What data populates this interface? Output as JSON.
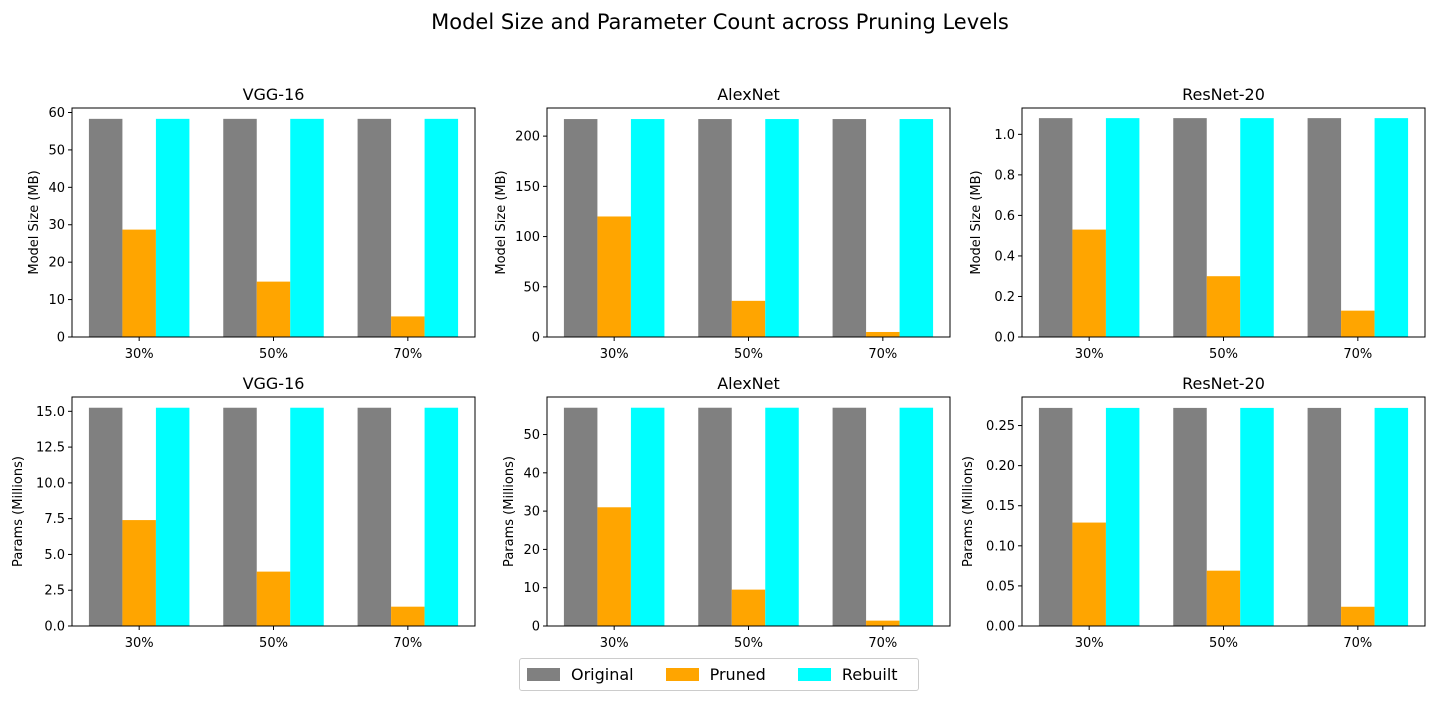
{
  "title": "Model Size and Parameter Count across Pruning Levels",
  "colors": {
    "Original": "#808080",
    "Pruned": "#FFA500",
    "Rebuilt": "#00FFFF"
  },
  "legend": [
    {
      "label": "Original",
      "color": "#808080"
    },
    {
      "label": "Pruned",
      "color": "#FFA500"
    },
    {
      "label": "Rebuilt",
      "color": "#00FFFF"
    }
  ],
  "chart_data": [
    {
      "type": "bar",
      "title": "VGG-16",
      "xlabel": "",
      "ylabel": "Model Size (MB)",
      "categories": [
        "30%",
        "50%",
        "70%"
      ],
      "ylim": [
        0,
        61.2
      ],
      "yticks": [
        "0",
        "10",
        "20",
        "30",
        "40",
        "50",
        "60"
      ],
      "series": [
        {
          "name": "Original",
          "values": [
            58.3,
            58.3,
            58.3
          ]
        },
        {
          "name": "Pruned",
          "values": [
            28.7,
            14.8,
            5.5
          ]
        },
        {
          "name": "Rebuilt",
          "values": [
            58.3,
            58.3,
            58.3
          ]
        }
      ]
    },
    {
      "type": "bar",
      "title": "AlexNet",
      "xlabel": "",
      "ylabel": "Model Size (MB)",
      "categories": [
        "30%",
        "50%",
        "70%"
      ],
      "ylim": [
        0,
        228
      ],
      "yticks": [
        "0",
        "50",
        "100",
        "150",
        "200"
      ],
      "series": [
        {
          "name": "Original",
          "values": [
            217,
            217,
            217
          ]
        },
        {
          "name": "Pruned",
          "values": [
            120,
            36,
            5
          ]
        },
        {
          "name": "Rebuilt",
          "values": [
            217,
            217,
            217
          ]
        }
      ]
    },
    {
      "type": "bar",
      "title": "ResNet-20",
      "xlabel": "",
      "ylabel": "Model Size (MB)",
      "categories": [
        "30%",
        "50%",
        "70%"
      ],
      "ylim": [
        0,
        1.13
      ],
      "yticks": [
        "0.0",
        "0.2",
        "0.4",
        "0.6",
        "0.8",
        "1.0"
      ],
      "series": [
        {
          "name": "Original",
          "values": [
            1.08,
            1.08,
            1.08
          ]
        },
        {
          "name": "Pruned",
          "values": [
            0.53,
            0.3,
            0.13
          ]
        },
        {
          "name": "Rebuilt",
          "values": [
            1.08,
            1.08,
            1.08
          ]
        }
      ]
    },
    {
      "type": "bar",
      "title": "VGG-16",
      "xlabel": "",
      "ylabel": "Params (Millions)",
      "categories": [
        "30%",
        "50%",
        "70%"
      ],
      "ylim": [
        0,
        16.0
      ],
      "yticks": [
        "0.0",
        "2.5",
        "5.0",
        "7.5",
        "10.0",
        "12.5",
        "15.0"
      ],
      "series": [
        {
          "name": "Original",
          "values": [
            15.25,
            15.25,
            15.25
          ]
        },
        {
          "name": "Pruned",
          "values": [
            7.4,
            3.8,
            1.35
          ]
        },
        {
          "name": "Rebuilt",
          "values": [
            15.25,
            15.25,
            15.25
          ]
        }
      ]
    },
    {
      "type": "bar",
      "title": "AlexNet",
      "xlabel": "",
      "ylabel": "Params (Millions)",
      "categories": [
        "30%",
        "50%",
        "70%"
      ],
      "ylim": [
        0,
        59.8
      ],
      "yticks": [
        "0",
        "10",
        "20",
        "30",
        "40",
        "50"
      ],
      "series": [
        {
          "name": "Original",
          "values": [
            57,
            57,
            57
          ]
        },
        {
          "name": "Pruned",
          "values": [
            31,
            9.5,
            1.4
          ]
        },
        {
          "name": "Rebuilt",
          "values": [
            57,
            57,
            57
          ]
        }
      ]
    },
    {
      "type": "bar",
      "title": "ResNet-20",
      "xlabel": "",
      "ylabel": "Params (Millions)",
      "categories": [
        "30%",
        "50%",
        "70%"
      ],
      "ylim": [
        0,
        0.2856
      ],
      "yticks": [
        "0.00",
        "0.05",
        "0.10",
        "0.15",
        "0.20",
        "0.25"
      ],
      "series": [
        {
          "name": "Original",
          "values": [
            0.272,
            0.272,
            0.272
          ]
        },
        {
          "name": "Pruned",
          "values": [
            0.129,
            0.069,
            0.024
          ]
        },
        {
          "name": "Rebuilt",
          "values": [
            0.272,
            0.272,
            0.272
          ]
        }
      ]
    }
  ]
}
